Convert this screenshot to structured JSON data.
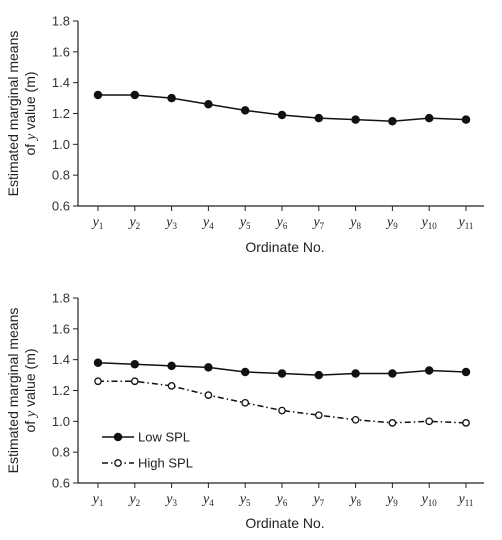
{
  "chart_data": [
    {
      "type": "line",
      "title": "",
      "categories": [
        "y1",
        "y2",
        "y3",
        "y4",
        "y5",
        "y6",
        "y7",
        "y8",
        "y9",
        "y10",
        "y11"
      ],
      "x_tick_labels": [
        {
          "base": "y",
          "sub": "1"
        },
        {
          "base": "y",
          "sub": "2"
        },
        {
          "base": "y",
          "sub": "3"
        },
        {
          "base": "y",
          "sub": "4"
        },
        {
          "base": "y",
          "sub": "5"
        },
        {
          "base": "y",
          "sub": "6"
        },
        {
          "base": "y",
          "sub": "7"
        },
        {
          "base": "y",
          "sub": "8"
        },
        {
          "base": "y",
          "sub": "9"
        },
        {
          "base": "y",
          "sub": "10"
        },
        {
          "base": "y",
          "sub": "11"
        }
      ],
      "xlabel": "Ordinate No.",
      "ylabel_line1": "Estimated marginal means",
      "ylabel_line2_pre": "of ",
      "ylabel_line2_var": "y",
      "ylabel_line2_post": " value (m)",
      "ylim": [
        0.6,
        1.8
      ],
      "yticks": [
        "0.6",
        "0.8",
        "1.0",
        "1.2",
        "1.4",
        "1.6",
        "1.8"
      ],
      "grid": false,
      "series": [
        {
          "values": [
            1.32,
            1.32,
            1.3,
            1.26,
            1.22,
            1.19,
            1.17,
            1.16,
            1.15,
            1.17,
            1.16
          ],
          "marker": "filled",
          "line": "solid",
          "color": "#111111"
        }
      ]
    },
    {
      "type": "line",
      "title": "",
      "categories": [
        "y1",
        "y2",
        "y3",
        "y4",
        "y5",
        "y6",
        "y7",
        "y8",
        "y9",
        "y10",
        "y11"
      ],
      "x_tick_labels": [
        {
          "base": "y",
          "sub": "1"
        },
        {
          "base": "y",
          "sub": "2"
        },
        {
          "base": "y",
          "sub": "3"
        },
        {
          "base": "y",
          "sub": "4"
        },
        {
          "base": "y",
          "sub": "5"
        },
        {
          "base": "y",
          "sub": "6"
        },
        {
          "base": "y",
          "sub": "7"
        },
        {
          "base": "y",
          "sub": "8"
        },
        {
          "base": "y",
          "sub": "9"
        },
        {
          "base": "y",
          "sub": "10"
        },
        {
          "base": "y",
          "sub": "11"
        }
      ],
      "xlabel": "Ordinate No.",
      "ylabel_line1": "Estimated marginal means",
      "ylabel_line2_pre": "of ",
      "ylabel_line2_var": "y",
      "ylabel_line2_post": " value (m)",
      "ylim": [
        0.6,
        1.8
      ],
      "yticks": [
        "0.6",
        "0.8",
        "1.0",
        "1.2",
        "1.4",
        "1.6",
        "1.8"
      ],
      "grid": false,
      "legend_position": "bottom-left",
      "series": [
        {
          "name": "Low SPL",
          "values": [
            1.38,
            1.37,
            1.36,
            1.35,
            1.32,
            1.31,
            1.3,
            1.31,
            1.31,
            1.33,
            1.32
          ],
          "marker": "filled",
          "line": "solid",
          "color": "#111111"
        },
        {
          "name": "High SPL",
          "values": [
            1.26,
            1.26,
            1.23,
            1.17,
            1.12,
            1.07,
            1.04,
            1.01,
            0.99,
            1.0,
            0.99
          ],
          "marker": "open",
          "line": "dashdot",
          "color": "#111111"
        }
      ]
    }
  ]
}
